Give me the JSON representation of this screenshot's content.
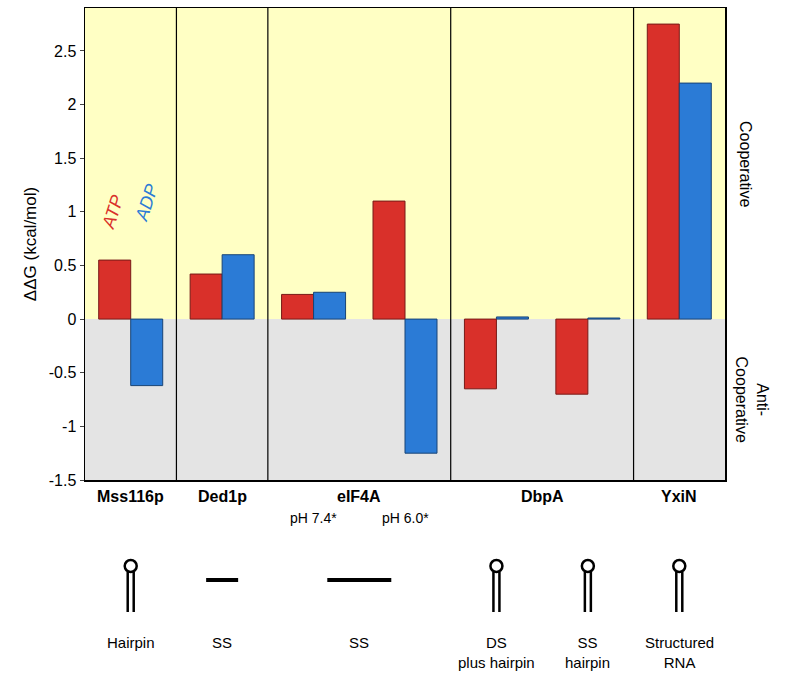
{
  "chart_data": {
    "type": "bar",
    "categories": [
      null,
      null,
      null,
      null,
      null,
      null,
      null
    ],
    "series": [
      {
        "name": "ATP",
        "color": "#d9302a",
        "values": [
          0.55,
          0.42,
          0.23,
          1.1,
          -0.65,
          -0.7,
          2.75
        ]
      },
      {
        "name": "ADP",
        "color": "#2b7bd6",
        "values": [
          -0.62,
          0.6,
          0.25,
          -1.25,
          0.02,
          0.01,
          2.2
        ]
      }
    ],
    "y_label": "ΔΔG (kcal/mol)",
    "ylim": [
      -1.5,
      2.9
    ],
    "yticks": [
      -1.5,
      -1,
      -0.5,
      0,
      0.5,
      1,
      1.5,
      2,
      2.5
    ],
    "grid": false,
    "tick_labels": "y",
    "regions": {
      "above": "Cooperative",
      "below": "Anti-Cooperative"
    },
    "groups": [
      {
        "label": "Mss116p",
        "positions": [
          0
        ],
        "substrates": [
          "Hairpin"
        ]
      },
      {
        "label": "Ded1p",
        "positions": [
          1
        ],
        "substrates": [
          "SS"
        ]
      },
      {
        "label": "eIF4A",
        "positions": [
          2,
          3
        ],
        "conditions": [
          "pH 7.4*",
          "pH 6.0*"
        ],
        "substrates": [
          "SS"
        ]
      },
      {
        "label": "DbpA",
        "positions": [
          4,
          5
        ],
        "substrates": [
          "DS plus hairpin",
          "SS hairpin"
        ]
      },
      {
        "label": "YxiN",
        "positions": [
          6
        ],
        "substrates": [
          "Structured RNA"
        ]
      }
    ]
  }
}
